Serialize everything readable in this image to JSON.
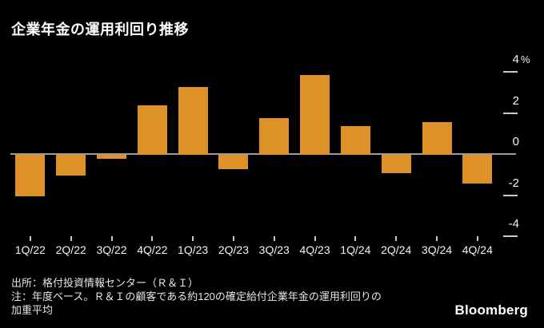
{
  "title": "企業年金の運用利回り推移",
  "chart_data": {
    "type": "bar",
    "categories": [
      "1Q/22",
      "2Q/22",
      "3Q/22",
      "4Q/22",
      "1Q/23",
      "2Q/23",
      "3Q/23",
      "4Q/23",
      "1Q/24",
      "2Q/24",
      "3Q/24",
      "4Q/24"
    ],
    "values": [
      -2.0,
      -1.0,
      -0.2,
      2.4,
      3.3,
      -0.7,
      1.8,
      3.9,
      1.4,
      -0.9,
      1.6,
      -1.4
    ],
    "title": "企業年金の運用利回り推移",
    "xlabel": "",
    "ylabel": "%",
    "unit_label": "%",
    "y_ticks": [
      4,
      2,
      0,
      -2,
      -4
    ],
    "y_tick_labels": [
      "4",
      "2",
      "0",
      "-2",
      "-4"
    ],
    "ylim": [
      -5,
      4.5
    ],
    "grid": "off",
    "legend": "none",
    "bar_color": "#DE9128"
  },
  "footer": {
    "source": "出所：格付投資情報センター（Ｒ＆Ｉ）",
    "note_lines": [
      "注：年度ベース。Ｒ＆Ｉの顧客である約120の確定給付企業年金の運用利回りの",
      "加重平均"
    ],
    "logo": "Bloomberg"
  },
  "colors": {
    "background": "#000000",
    "bar": "#DE9128",
    "axis_line": "#9C9C9C",
    "tick": "#C9C9C9",
    "label_text": "#F2F2F2",
    "footer_text": "#E6E6E6",
    "title_text": "#FFFFFF"
  }
}
